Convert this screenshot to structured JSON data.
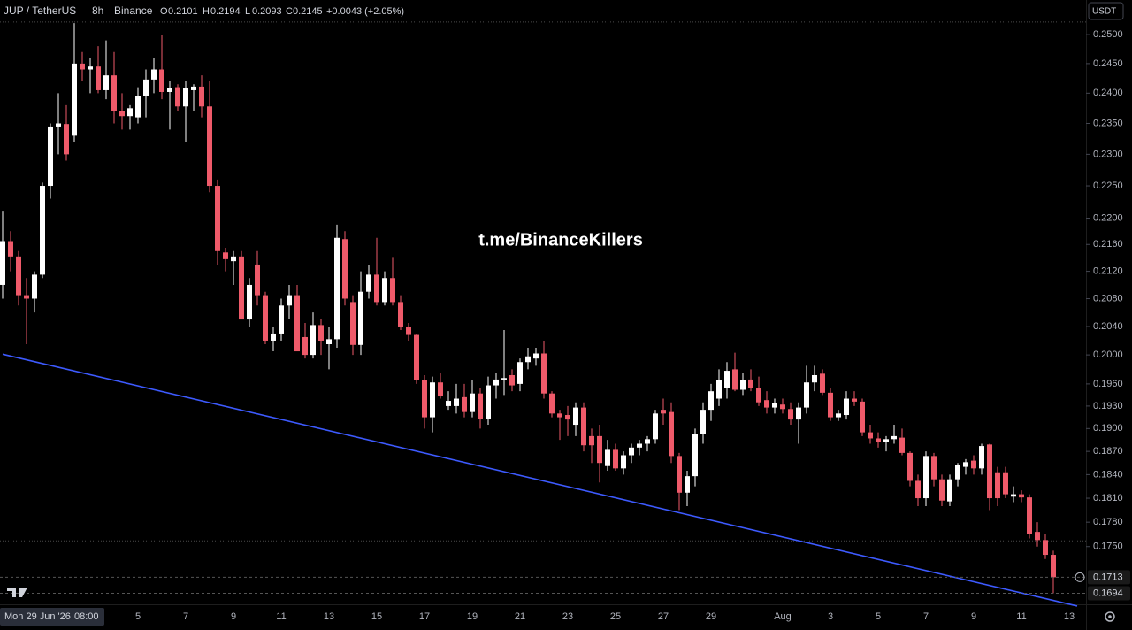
{
  "header": {
    "symbol": "JUP / TetherUS",
    "interval": "8h",
    "exchange": "Binance",
    "ohlc": [
      {
        "label": "O",
        "value": "0.2101"
      },
      {
        "label": "H",
        "value": "0.2194"
      },
      {
        "label": "L",
        "value": "0.2093"
      },
      {
        "label": "C",
        "value": "0.2145"
      }
    ],
    "change": "+0.0043 (+2.05%)"
  },
  "currency_button": "USDT",
  "watermark": "t.me/BinanceKillers",
  "crosshair_date": {
    "date": "Mon 29 Jun '26",
    "time": "08:00"
  },
  "chart_data": {
    "type": "candlestick",
    "log_scale": true,
    "grid": false,
    "up_color": "#ffffff",
    "down_color": "#ef5a6a",
    "categories": [
      null,
      null,
      null,
      null,
      null,
      null,
      null,
      null,
      null,
      null,
      null,
      null,
      null,
      null,
      null,
      null,
      null,
      "5",
      null,
      null,
      null,
      null,
      null,
      "7",
      null,
      null,
      null,
      null,
      null,
      "9",
      null,
      null,
      null,
      null,
      null,
      "11",
      null,
      null,
      null,
      null,
      null,
      "13",
      null,
      null,
      null,
      null,
      null,
      "15",
      null,
      null,
      null,
      null,
      null,
      "17",
      null,
      null,
      null,
      null,
      null,
      "19",
      null,
      null,
      null,
      null,
      null,
      "21",
      null,
      null,
      null,
      null,
      null,
      "23",
      null,
      null,
      null,
      null,
      null,
      "25",
      null,
      null,
      null,
      null,
      null,
      "27",
      null,
      null,
      null,
      null,
      null,
      "29",
      null,
      null,
      null,
      null,
      null,
      null,
      null,
      null,
      "Aug",
      null,
      null,
      null,
      null,
      null,
      "3",
      null,
      null,
      null,
      null,
      null,
      "5",
      null,
      null,
      null,
      null,
      null,
      "7",
      null,
      null,
      null,
      null,
      null,
      "9",
      null,
      null,
      null,
      null,
      null,
      "11",
      null,
      null,
      null,
      null,
      null,
      "13",
      null
    ],
    "open": [
      0.21,
      0.2165,
      0.2142,
      0.2085,
      0.208,
      0.2115,
      0.225,
      0.2345,
      0.2349,
      0.233,
      0.245,
      0.244,
      0.2445,
      0.2405,
      0.243,
      0.237,
      0.2362,
      0.236,
      0.2395,
      0.2423,
      0.244,
      0.2402,
      0.241,
      0.2378,
      0.2405,
      0.2411,
      0.2378,
      0.225,
      0.2148,
      0.2135,
      0.2142,
      0.205,
      0.213,
      0.2085,
      0.202,
      0.203,
      0.207,
      0.2085,
      0.2025,
      0.2,
      0.2042,
      0.2015,
      0.2022,
      0.2168,
      0.2075,
      0.2014,
      0.209,
      0.2115,
      0.2075,
      0.211,
      0.2075,
      0.204,
      0.2028,
      0.1965,
      0.1915,
      0.1962,
      0.193,
      0.193,
      0.1942,
      0.1922,
      0.1947,
      0.1913,
      0.1958,
      0.1966,
      0.1972,
      0.196,
      0.199,
      0.1995,
      0.2002,
      0.1947,
      0.192,
      0.1918,
      0.1905,
      0.1928,
      0.189,
      0.189,
      0.1851,
      0.1872,
      0.1848,
      0.1865,
      0.1875,
      0.188,
      0.1886,
      0.1925,
      0.1922,
      0.1864,
      0.1817,
      0.1838,
      0.1893,
      0.1925,
      0.194,
      0.1955,
      0.198,
      0.1952,
      0.1966,
      0.1955,
      0.1938,
      0.1928,
      0.1932,
      0.1926,
      0.1912,
      0.1928,
      0.1962,
      0.1974,
      0.1948,
      0.1915,
      0.1918,
      0.194,
      0.1936,
      0.1895,
      0.1887,
      0.1882,
      0.1886,
      0.1888,
      0.1868,
      0.1832,
      0.181,
      0.1864,
      0.1834,
      0.1806,
      0.1834,
      0.185,
      0.1858,
      0.1848,
      0.1879,
      0.1843,
      0.1843,
      0.1812,
      0.1815,
      0.1811,
      0.1768,
      0.1758,
      0.174,
      null,
      null,
      null
    ],
    "high": [
      0.221,
      0.218,
      0.215,
      0.211,
      0.212,
      0.2255,
      0.235,
      0.24,
      0.238,
      0.252,
      0.247,
      0.246,
      0.248,
      0.249,
      0.247,
      0.24,
      0.238,
      0.241,
      0.244,
      0.246,
      0.25,
      0.242,
      0.2415,
      0.242,
      0.2415,
      0.243,
      0.242,
      0.226,
      0.2155,
      0.215,
      0.215,
      0.211,
      0.215,
      0.209,
      0.204,
      0.208,
      0.21,
      0.21,
      0.2045,
      0.206,
      0.205,
      0.204,
      0.219,
      0.218,
      0.2085,
      0.212,
      0.213,
      0.217,
      0.212,
      0.214,
      0.2085,
      0.2045,
      0.203,
      0.1972,
      0.197,
      0.1975,
      0.195,
      0.196,
      0.196,
      0.1965,
      0.1955,
      0.197,
      0.1975,
      0.2035,
      0.198,
      0.1995,
      0.201,
      0.201,
      0.202,
      0.195,
      0.1925,
      0.193,
      0.1935,
      0.1935,
      0.19,
      0.1905,
      0.1885,
      0.188,
      0.187,
      0.188,
      0.1885,
      0.189,
      0.1925,
      0.194,
      0.1935,
      0.1868,
      0.1845,
      0.19,
      0.1935,
      0.196,
      0.198,
      0.199,
      0.2003,
      0.1975,
      0.198,
      0.197,
      0.195,
      0.194,
      0.194,
      0.1935,
      0.1935,
      0.1985,
      0.1985,
      0.198,
      0.1955,
      0.1925,
      0.195,
      0.195,
      0.194,
      0.1905,
      0.1895,
      0.189,
      0.1905,
      0.19,
      0.187,
      0.184,
      0.187,
      0.1868,
      0.184,
      0.184,
      0.1855,
      0.186,
      0.1865,
      0.188,
      0.188,
      0.185,
      0.185,
      0.1825,
      0.182,
      0.1815,
      0.178,
      0.1765,
      0.1745,
      null,
      null,
      null
    ],
    "low": [
      0.208,
      0.212,
      0.207,
      0.2015,
      0.206,
      0.211,
      0.223,
      0.23,
      0.229,
      0.232,
      0.242,
      0.24,
      0.24,
      0.239,
      0.235,
      0.234,
      0.234,
      0.235,
      0.236,
      0.24,
      0.239,
      0.234,
      0.237,
      0.232,
      0.237,
      0.236,
      0.224,
      0.213,
      0.212,
      0.21,
      0.205,
      0.204,
      0.207,
      0.2015,
      0.2005,
      0.202,
      0.205,
      0.2005,
      0.1995,
      0.1995,
      0.2,
      0.198,
      0.201,
      0.207,
      0.2,
      0.2,
      0.208,
      0.207,
      0.207,
      0.207,
      0.2035,
      0.202,
      0.196,
      0.19,
      0.1895,
      0.194,
      0.1925,
      0.192,
      0.1915,
      0.1915,
      0.19,
      0.1905,
      0.194,
      0.1945,
      0.195,
      0.195,
      0.198,
      0.1985,
      0.194,
      0.1915,
      0.1885,
      0.189,
      0.189,
      0.187,
      0.1855,
      0.183,
      0.1845,
      0.1845,
      0.184,
      0.1855,
      0.1865,
      0.187,
      0.188,
      0.1905,
      0.1855,
      0.1795,
      0.18,
      0.1825,
      0.188,
      0.191,
      0.193,
      0.194,
      0.195,
      0.1945,
      0.195,
      0.193,
      0.192,
      0.192,
      0.192,
      0.1905,
      0.188,
      0.192,
      0.195,
      0.1945,
      0.191,
      0.191,
      0.1912,
      0.193,
      0.189,
      0.188,
      0.1875,
      0.187,
      0.188,
      0.1865,
      0.1825,
      0.18,
      0.18,
      0.1825,
      0.18,
      0.18,
      0.1825,
      0.184,
      0.184,
      0.184,
      0.1795,
      0.18,
      0.181,
      0.1805,
      0.1805,
      0.176,
      0.175,
      0.1735,
      0.1694,
      null,
      null,
      null
    ],
    "close": [
      0.2165,
      0.2142,
      0.2085,
      0.208,
      0.2115,
      0.225,
      0.2345,
      0.235,
      0.23,
      0.245,
      0.244,
      0.2445,
      0.2405,
      0.243,
      0.237,
      0.2362,
      0.2375,
      0.2395,
      0.2423,
      0.244,
      0.2402,
      0.2408,
      0.2378,
      0.2408,
      0.2411,
      0.2378,
      0.225,
      0.215,
      0.2138,
      0.2142,
      0.205,
      0.21,
      0.2085,
      0.202,
      0.203,
      0.207,
      0.2085,
      0.2005,
      0.2,
      0.2042,
      0.202,
      0.2022,
      0.217,
      0.208,
      0.2014,
      0.209,
      0.2115,
      0.2075,
      0.211,
      0.2075,
      0.204,
      0.2028,
      0.1965,
      0.1915,
      0.1962,
      0.1943,
      0.1937,
      0.194,
      0.1922,
      0.1947,
      0.1913,
      0.1958,
      0.1966,
      0.1968,
      0.1958,
      0.199,
      0.1998,
      0.2002,
      0.1947,
      0.192,
      0.1915,
      0.1912,
      0.1928,
      0.1878,
      0.1878,
      0.1855,
      0.1872,
      0.1848,
      0.1865,
      0.1875,
      0.188,
      0.1886,
      0.192,
      0.192,
      0.1864,
      0.1817,
      0.1838,
      0.1893,
      0.1925,
      0.195,
      0.1965,
      0.1978,
      0.1952,
      0.1965,
      0.1955,
      0.1935,
      0.1928,
      0.1934,
      0.1926,
      0.1912,
      0.1928,
      0.1962,
      0.1972,
      0.1948,
      0.1915,
      0.192,
      0.194,
      0.1936,
      0.1895,
      0.1887,
      0.1882,
      0.1886,
      0.189,
      0.1868,
      0.1832,
      0.181,
      0.1864,
      0.1834,
      0.1807,
      0.1834,
      0.1852,
      0.1856,
      0.1848,
      0.1877,
      0.181,
      0.181,
      0.1815,
      0.1815,
      0.1811,
      0.1765,
      0.1758,
      0.174,
      0.1713,
      null,
      null,
      null
    ],
    "ylim": [
      0.1681,
      0.2561
    ],
    "yticks": [
      {
        "value": 0.25,
        "label": "0.2500"
      },
      {
        "value": 0.245,
        "label": "0.2450"
      },
      {
        "value": 0.24,
        "label": "0.2400"
      },
      {
        "value": 0.235,
        "label": "0.2350"
      },
      {
        "value": 0.23,
        "label": "0.2300"
      },
      {
        "value": 0.225,
        "label": "0.2250"
      },
      {
        "value": 0.22,
        "label": "0.2200"
      },
      {
        "value": 0.216,
        "label": "0.2160"
      },
      {
        "value": 0.212,
        "label": "0.2120"
      },
      {
        "value": 0.208,
        "label": "0.2080"
      },
      {
        "value": 0.204,
        "label": "0.2040"
      },
      {
        "value": 0.2,
        "label": "0.2000"
      },
      {
        "value": 0.196,
        "label": "0.1960"
      },
      {
        "value": 0.193,
        "label": "0.1930"
      },
      {
        "value": 0.19,
        "label": "0.1900"
      },
      {
        "value": 0.187,
        "label": "0.1870"
      },
      {
        "value": 0.184,
        "label": "0.1840"
      },
      {
        "value": 0.181,
        "label": "0.1810"
      },
      {
        "value": 0.178,
        "label": "0.1780"
      },
      {
        "value": 0.175,
        "label": "0.1750"
      }
    ],
    "trendline": {
      "color": "#3d5afe",
      "x": [
        0,
        135
      ],
      "y": [
        0.2001,
        0.1679
      ]
    },
    "dotted_levels": [
      0.2522,
      0.1757
    ]
  }
}
